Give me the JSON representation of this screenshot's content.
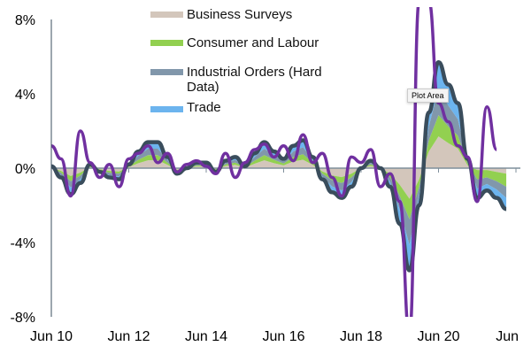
{
  "chart_data": {
    "type": "area",
    "title": "",
    "xlabel": "",
    "ylabel": "",
    "ylim": [
      -8,
      8
    ],
    "xlim": [
      2010.5,
      2022.5
    ],
    "yticks": [
      {
        "v": 8,
        "label": "8%"
      },
      {
        "v": 4,
        "label": "4%"
      },
      {
        "v": 0,
        "label": "0%"
      },
      {
        "v": -4,
        "label": "-4%"
      },
      {
        "v": -8,
        "label": "-8%"
      }
    ],
    "xticks": [
      {
        "v": 2010.5,
        "label": "Jun 10"
      },
      {
        "v": 2012.5,
        "label": "Jun 12"
      },
      {
        "v": 2014.5,
        "label": "Jun 14"
      },
      {
        "v": 2016.5,
        "label": "Jun 16"
      },
      {
        "v": 2018.5,
        "label": "Jun 18"
      },
      {
        "v": 2020.5,
        "label": "Jun 20"
      },
      {
        "v": 2022.5,
        "label": "Jun"
      }
    ],
    "x_start": 2010.5,
    "x_step": 0.25,
    "stacked_series": [
      {
        "name": "Business Surveys",
        "color": "#d3c6bb",
        "values": [
          0.03,
          -0.15,
          -0.42,
          -0.24,
          0.06,
          -0.06,
          -0.15,
          -0.18,
          0.06,
          0.27,
          0.42,
          0.42,
          0.18,
          -0.09,
          0,
          0.09,
          0.09,
          -0.06,
          0.12,
          0.18,
          0.03,
          0.24,
          0.42,
          0.27,
          0.15,
          0.36,
          0.45,
          0.18,
          -0.18,
          -0.39,
          -0.48,
          -0.3,
          0,
          0.12,
          0,
          -0.3,
          -0.9,
          -1.65,
          -0.6,
          0.9,
          1.71,
          1.35,
          1.05,
          0.15,
          -0.1,
          -0.1,
          -0.2,
          -0.3
        ]
      },
      {
        "name": "Consumer and Labour",
        "color": "#92d050",
        "values": [
          0.02,
          -0.1,
          -0.28,
          -0.16,
          0.04,
          -0.04,
          -0.1,
          -0.12,
          0.04,
          0.18,
          0.28,
          0.28,
          0.12,
          -0.06,
          0,
          0.06,
          0.06,
          -0.04,
          0.08,
          0.12,
          0.02,
          0.16,
          0.28,
          0.18,
          0.1,
          0.24,
          0.3,
          0.12,
          -0.12,
          -0.26,
          -0.32,
          -0.2,
          0,
          0.08,
          0,
          -0.2,
          -0.6,
          -1.1,
          -0.4,
          0.6,
          1.14,
          0.9,
          0.7,
          0.1,
          -0.5,
          -0.4,
          -0.5,
          -0.7
        ]
      },
      {
        "name": "Industrial Orders (Hard Data)",
        "color": "#8197ab",
        "values": [
          0.03,
          -0.13,
          -0.35,
          -0.2,
          0.05,
          -0.05,
          -0.13,
          -0.15,
          0.05,
          0.23,
          0.35,
          0.35,
          0.15,
          -0.08,
          0,
          0.08,
          0.08,
          -0.05,
          0.1,
          0.15,
          0.03,
          0.2,
          0.35,
          0.23,
          0.13,
          0.3,
          0.38,
          0.15,
          -0.15,
          -0.33,
          -0.4,
          -0.25,
          0,
          0.1,
          0,
          -0.25,
          -0.75,
          -1.38,
          -0.5,
          0.75,
          1.43,
          1.13,
          0.88,
          0.13,
          -0.5,
          -0.35,
          -0.45,
          -0.6
        ]
      },
      {
        "name": "Trade",
        "color": "#6cb4ee",
        "values": [
          0.02,
          -0.12,
          -0.35,
          -0.2,
          0.05,
          -0.05,
          -0.12,
          -0.15,
          0.05,
          0.22,
          0.35,
          0.35,
          0.15,
          -0.07,
          0,
          0.07,
          0.07,
          -0.05,
          0.1,
          0.15,
          0.02,
          0.2,
          0.35,
          0.22,
          0.12,
          0.3,
          0.37,
          0.15,
          -0.15,
          -0.32,
          -0.4,
          -0.25,
          0,
          0.1,
          0,
          -0.25,
          -0.75,
          -1.37,
          -0.5,
          0.75,
          1.42,
          1.12,
          0.87,
          0.12,
          -0.5,
          -0.35,
          -0.45,
          -0.6
        ]
      },
      {
        "name": "",
        "color": "#2e9be6",
        "values": [
          0,
          0,
          0,
          0,
          0,
          0,
          0,
          0,
          0,
          0,
          0,
          0,
          0,
          0,
          0,
          0,
          0,
          0,
          0,
          0,
          0,
          0,
          0,
          0,
          0,
          0,
          0,
          0,
          0,
          0,
          0,
          0,
          0,
          0,
          0,
          0,
          0,
          0,
          0,
          0,
          0,
          0,
          0,
          0,
          0,
          0,
          0,
          0
        ]
      }
    ],
    "composite_line": {
      "name": "",
      "color": "#3a4d5c",
      "values": [
        0.1,
        -0.5,
        -1.4,
        -0.8,
        0.2,
        -0.2,
        -0.5,
        -0.6,
        0.2,
        0.9,
        1.4,
        1.4,
        0.6,
        -0.3,
        0,
        0.3,
        0.3,
        -0.2,
        0.4,
        0.6,
        0.1,
        0.8,
        1.4,
        0.9,
        0.5,
        1.2,
        1.5,
        0.6,
        -0.6,
        -1.3,
        -1.6,
        -1.0,
        0,
        0.4,
        0,
        -1.0,
        -3.0,
        -5.5,
        -2.0,
        3.0,
        5.7,
        4.5,
        3.5,
        0.5,
        -1.6,
        -1.2,
        -1.6,
        -2.2
      ]
    },
    "purple_line": {
      "name": "",
      "color": "#7030a0",
      "values": [
        1.2,
        0.5,
        -1.5,
        2.0,
        0.3,
        -0.5,
        0.2,
        -1.0,
        0.5,
        0.8,
        1.2,
        0.3,
        0.8,
        -0.2,
        0.2,
        0.4,
        0.1,
        -0.3,
        0.8,
        -0.5,
        0.3,
        1.0,
        1.3,
        0.6,
        1.2,
        0.4,
        1.8,
        0.3,
        0.8,
        -0.5,
        -1.5,
        0.6,
        0.3,
        1.0,
        -1.0,
        -0.3,
        -1.8,
        -9,
        9,
        9,
        3.5,
        2.5,
        1.2,
        0.6,
        -1.8,
        3.3,
        1.0
      ]
    },
    "legend": {
      "placement": "top-center",
      "entries": [
        "Business Surveys",
        "Consumer and Labour",
        "Industrial Orders (Hard Data)",
        "Trade"
      ]
    }
  },
  "legend": {
    "items": [
      {
        "label": "Business Surveys",
        "color": "#d3c6bb"
      },
      {
        "label": "Consumer and Labour",
        "color": "#92d050"
      },
      {
        "label": "Industrial Orders (Hard Data)",
        "color": "#8197ab"
      },
      {
        "label": "Trade",
        "color": "#6cb4ee"
      }
    ]
  },
  "tooltip": {
    "text": "Plot Area"
  }
}
